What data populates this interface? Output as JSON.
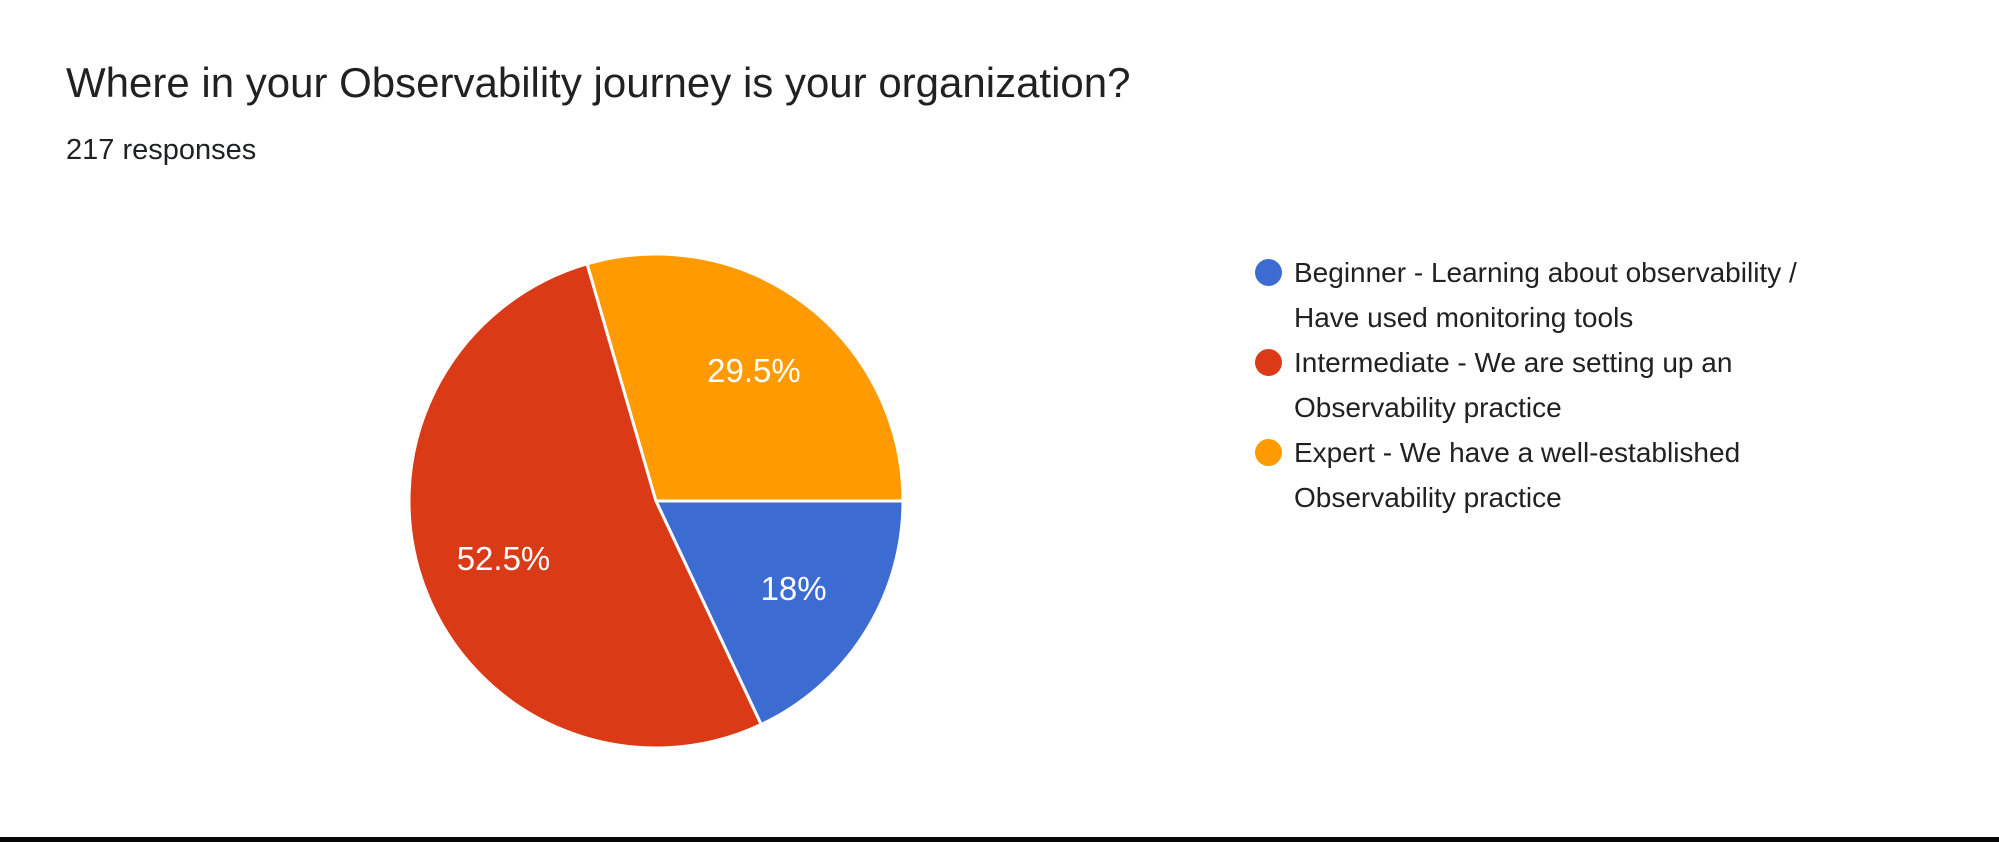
{
  "header": {
    "title": "Where in your Observability journey is your organization?",
    "subtitle": "217 responses"
  },
  "chart_data": {
    "type": "pie",
    "title": "Where in your Observability journey is your organization?",
    "subtitle": "217 responses",
    "total_responses": 217,
    "legend_position": "right",
    "start_angle_deg": 90,
    "direction": "clockwise",
    "slice_stroke_color": "#ffffff",
    "label_color": "#ffffff",
    "slices": [
      {
        "label": "Beginner - Learning about observability / Have used monitoring tools",
        "value_pct": 18,
        "display": "18%",
        "color": "#3C6BD2"
      },
      {
        "label": "Intermediate - We are setting up an Observability practice",
        "value_pct": 52.5,
        "display": "52.5%",
        "color": "#DB3A17"
      },
      {
        "label": "Expert - We have a well-established Observability practice",
        "value_pct": 29.5,
        "display": "29.5%",
        "color": "#FF9A00"
      }
    ]
  },
  "legend": {
    "items": [
      {
        "color": "#3C6BD2",
        "lines": [
          "Beginner - Learning about observability /",
          "Have used monitoring tools"
        ]
      },
      {
        "color": "#DB3A17",
        "lines": [
          "Intermediate - We are setting up an",
          "Observability practice"
        ]
      },
      {
        "color": "#FF9A00",
        "lines": [
          "Expert - We have a well-established",
          "Observability practice"
        ]
      }
    ]
  }
}
